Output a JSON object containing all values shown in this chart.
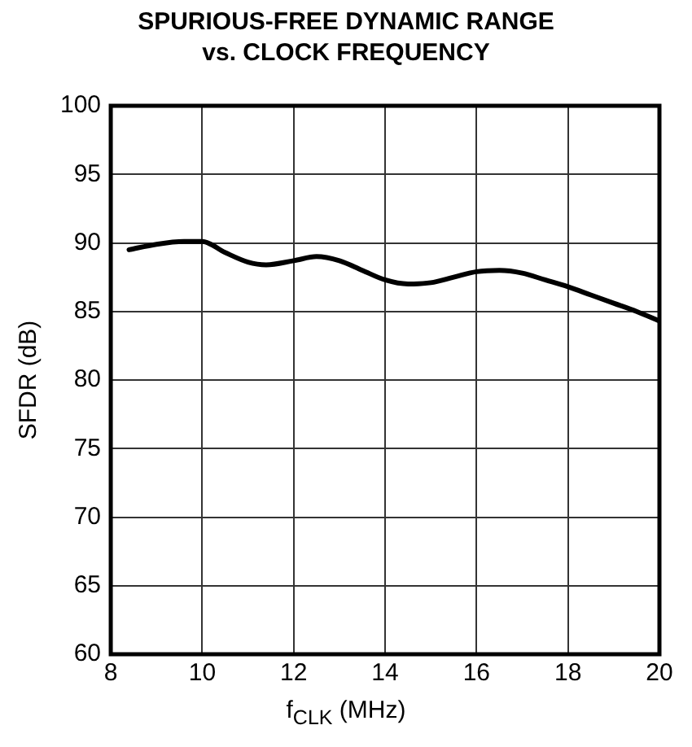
{
  "chart_data": {
    "type": "line",
    "title": "SPURIOUS-FREE DYNAMIC RANGE\nvs. CLOCK FREQUENCY",
    "xlabel": "f$_{CLK}$ (MHz)",
    "ylabel": "SFDR (dB)",
    "x": [
      8.4,
      9,
      9.6,
      10,
      10.5,
      11,
      11.4,
      12,
      12.5,
      13,
      13.5,
      14,
      14.5,
      15,
      15.5,
      16,
      16.5,
      17,
      17.5,
      18,
      18.5,
      19,
      19.5,
      20
    ],
    "series": [
      {
        "color": "#000000",
        "values": [
          89.5,
          89.9,
          90.1,
          90.1,
          89.3,
          88.6,
          88.4,
          88.7,
          89.0,
          88.7,
          88.0,
          87.3,
          87.0,
          87.1,
          87.5,
          87.9,
          88.0,
          87.8,
          87.3,
          86.8,
          86.2,
          85.6,
          85.0,
          84.3
        ]
      }
    ],
    "xlim": [
      8,
      20
    ],
    "xticks": [
      8,
      10,
      12,
      14,
      16,
      18,
      20
    ],
    "ylim": [
      60,
      100
    ],
    "yticks": [
      60,
      65,
      70,
      75,
      80,
      85,
      90,
      95,
      100
    ],
    "grid": true,
    "legend": false,
    "marker": "none",
    "line_style": "solid"
  }
}
